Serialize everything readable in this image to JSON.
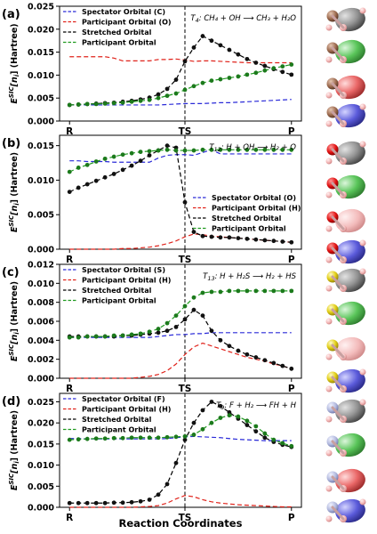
{
  "figure": {
    "x_axis_title": "Reaction Coordinates",
    "ticks": [
      "R",
      "TS",
      "P"
    ],
    "ylabel_main": "E",
    "ylabel_sup": "SIC",
    "ylabel_tail": "[n",
    "ylabel_sub": "i",
    "ylabel_end": "] (Hartree)",
    "colors": {
      "spectator": "#2a2ad8",
      "participant_h": "#e0231b",
      "stretched": "#000000",
      "participant": "#1f9a1f",
      "dot_black": "#111111",
      "dot_green": "#1c7a1c"
    }
  },
  "chart_data": [
    {
      "type": "line",
      "panel_label": "(a)",
      "reaction_label": "T",
      "reaction_label_sub": "4",
      "reaction_label_rest": ": CH₄ + OH ⟶ CH₃ + H₂O",
      "x": [
        0,
        1,
        2,
        3,
        4,
        5,
        6,
        7,
        8,
        9,
        10,
        11,
        12,
        13,
        14,
        15,
        16,
        17,
        18,
        19,
        20,
        21,
        22,
        23,
        24,
        25
      ],
      "ylim": [
        0,
        0.025
      ],
      "yticks": [
        "0.000",
        "0.005",
        "0.010",
        "0.015",
        "0.020",
        "0.025"
      ],
      "series": [
        {
          "name": "Spectator Orbital (C)",
          "style": "dashed",
          "color_key": "spectator",
          "values": [
            0.0035,
            0.0035,
            0.0035,
            0.0035,
            0.0035,
            0.0035,
            0.0035,
            0.0035,
            0.0035,
            0.0035,
            0.0035,
            0.0036,
            0.0037,
            0.0038,
            0.0038,
            0.0038,
            0.0039,
            0.004,
            0.004,
            0.0041,
            0.0042,
            0.0043,
            0.0044,
            0.0045,
            0.0046,
            0.0047
          ]
        },
        {
          "name": "Participant Orbital (O)",
          "style": "dashed",
          "color_key": "participant_h",
          "values": [
            0.014,
            0.014,
            0.014,
            0.014,
            0.014,
            0.0137,
            0.0131,
            0.0131,
            0.0131,
            0.0131,
            0.0134,
            0.0134,
            0.0135,
            0.0133,
            0.013,
            0.0131,
            0.0131,
            0.013,
            0.0129,
            0.0128,
            0.0127,
            0.0127,
            0.0127,
            0.0127,
            0.0127,
            0.0127
          ]
        },
        {
          "name": "Stretched Orbital",
          "style": "dashed",
          "color_key": "stretched",
          "dots": true,
          "values": [
            0.0035,
            0.0036,
            0.0037,
            0.0038,
            0.0039,
            0.004,
            0.0042,
            0.0044,
            0.0047,
            0.0051,
            0.0058,
            0.007,
            0.009,
            0.013,
            0.016,
            0.0185,
            0.0175,
            0.0165,
            0.0155,
            0.0145,
            0.0135,
            0.0127,
            0.012,
            0.0113,
            0.0107,
            0.0101
          ]
        },
        {
          "name": "Participant Orbital",
          "style": "dashed",
          "color_key": "participant",
          "dots": true,
          "dot_color_key": "dot_green",
          "values": [
            0.0035,
            0.0036,
            0.0037,
            0.0037,
            0.0038,
            0.0039,
            0.004,
            0.0042,
            0.0044,
            0.0046,
            0.005,
            0.0055,
            0.006,
            0.0068,
            0.0076,
            0.0083,
            0.0088,
            0.0091,
            0.0094,
            0.0097,
            0.0101,
            0.0105,
            0.011,
            0.0115,
            0.0119,
            0.0123
          ]
        }
      ]
    },
    {
      "type": "line",
      "panel_label": "(b)",
      "reaction_label": "T",
      "reaction_label_sub": "12",
      "reaction_label_rest": ": H + OH ⟶ H₂ + O",
      "x": [
        0,
        1,
        2,
        3,
        4,
        5,
        6,
        7,
        8,
        9,
        10,
        11,
        12,
        13,
        14,
        15,
        16,
        17,
        18,
        19,
        20,
        21,
        22,
        23,
        24,
        25
      ],
      "ylim": [
        0,
        0.0165
      ],
      "yticks": [
        "0.000",
        "0.005",
        "0.010",
        "0.015"
      ],
      "series": [
        {
          "name": "Spectator Orbital (O)",
          "style": "dashed",
          "color_key": "spectator",
          "values": [
            0.0128,
            0.0128,
            0.0127,
            0.0127,
            0.0127,
            0.0126,
            0.0126,
            0.0126,
            0.0126,
            0.0126,
            0.0132,
            0.0136,
            0.0137,
            0.0137,
            0.0136,
            0.014,
            0.0144,
            0.0138,
            0.0138,
            0.0138,
            0.0138,
            0.0138,
            0.0138,
            0.0138,
            0.0138,
            0.0138
          ]
        },
        {
          "name": "Participant Orbital (H)",
          "style": "dashed",
          "color_key": "participant_h",
          "values": [
            0.0,
            0.0,
            0.0,
            0.0,
            0.0,
            0.0,
            0.0001,
            0.0001,
            0.0002,
            0.0003,
            0.0005,
            0.0008,
            0.0012,
            0.0018,
            0.0022,
            0.0021,
            0.0019,
            0.0018,
            0.0017,
            0.0016,
            0.0015,
            0.0014,
            0.0013,
            0.0012,
            0.0011,
            0.001
          ]
        },
        {
          "name": "Stretched Orbital",
          "style": "dashed",
          "color_key": "stretched",
          "dots": true,
          "values": [
            0.0083,
            0.0089,
            0.0094,
            0.0099,
            0.0104,
            0.0109,
            0.0115,
            0.0121,
            0.0128,
            0.0136,
            0.0143,
            0.015,
            0.0147,
            0.0068,
            0.0025,
            0.0019,
            0.0018,
            0.0017,
            0.0017,
            0.0016,
            0.0015,
            0.0014,
            0.0013,
            0.0012,
            0.0011,
            0.001
          ]
        },
        {
          "name": "Participant Orbital",
          "style": "dashed",
          "color_key": "participant",
          "dots": true,
          "dot_color_key": "dot_green",
          "values": [
            0.0112,
            0.0118,
            0.0122,
            0.0127,
            0.0131,
            0.0134,
            0.0137,
            0.0139,
            0.0141,
            0.0142,
            0.0143,
            0.0144,
            0.0143,
            0.0143,
            0.0143,
            0.0144,
            0.0144,
            0.0144,
            0.0144,
            0.0144,
            0.0144,
            0.0144,
            0.0144,
            0.0144,
            0.0144,
            0.0144
          ]
        }
      ]
    },
    {
      "type": "line",
      "panel_label": "(c)",
      "reaction_label": "T",
      "reaction_label_sub": "13",
      "reaction_label_rest": ": H + H₂S ⟶ H₂ + HS",
      "x": [
        0,
        1,
        2,
        3,
        4,
        5,
        6,
        7,
        8,
        9,
        10,
        11,
        12,
        13,
        14,
        15,
        16,
        17,
        18,
        19,
        20,
        21,
        22,
        23,
        24,
        25
      ],
      "ylim": [
        0,
        0.012
      ],
      "yticks": [
        "0.000",
        "0.002",
        "0.004",
        "0.006",
        "0.008",
        "0.010",
        "0.012"
      ],
      "series": [
        {
          "name": "Spectator Orbital (S)",
          "style": "dashed",
          "color_key": "spectator",
          "values": [
            0.0043,
            0.0043,
            0.0043,
            0.0043,
            0.0043,
            0.0043,
            0.0043,
            0.0043,
            0.0043,
            0.0043,
            0.0044,
            0.0045,
            0.0046,
            0.0046,
            0.0047,
            0.0047,
            0.0048,
            0.0048,
            0.0048,
            0.0048,
            0.0048,
            0.0048,
            0.0048,
            0.0048,
            0.0048,
            0.0048
          ]
        },
        {
          "name": "Participant Orbital (H)",
          "style": "dashed",
          "color_key": "participant_h",
          "values": [
            0.0,
            0.0,
            0.0,
            0.0,
            0.0,
            0.0,
            0.0,
            0.0,
            0.0001,
            0.0002,
            0.0004,
            0.0008,
            0.0015,
            0.0025,
            0.0033,
            0.0037,
            0.0034,
            0.0031,
            0.0028,
            0.0025,
            0.0022,
            0.002,
            0.0018,
            0.0015,
            0.0013,
            0.001
          ]
        },
        {
          "name": "Stretched Orbital",
          "style": "dashed",
          "color_key": "stretched",
          "dots": true,
          "values": [
            0.0044,
            0.0044,
            0.0044,
            0.0044,
            0.0044,
            0.0044,
            0.0045,
            0.0045,
            0.0046,
            0.0047,
            0.0048,
            0.005,
            0.0054,
            0.0062,
            0.0072,
            0.0066,
            0.005,
            0.004,
            0.0034,
            0.0029,
            0.0025,
            0.0022,
            0.0019,
            0.0016,
            0.0013,
            0.001
          ]
        },
        {
          "name": "Participant Orbital",
          "style": "dashed",
          "color_key": "participant",
          "dots": true,
          "dot_color_key": "dot_green",
          "values": [
            0.0043,
            0.0043,
            0.0044,
            0.0044,
            0.0044,
            0.0045,
            0.0045,
            0.0046,
            0.0047,
            0.0049,
            0.0052,
            0.0058,
            0.0066,
            0.0076,
            0.0085,
            0.009,
            0.0091,
            0.0091,
            0.0092,
            0.0092,
            0.0092,
            0.0092,
            0.0092,
            0.0092,
            0.0092,
            0.0092
          ]
        }
      ]
    },
    {
      "type": "line",
      "panel_label": "(d)",
      "reaction_label": "T",
      "reaction_label_sub": "9",
      "reaction_label_rest": ": F + H₂ ⟶ FH + H",
      "x": [
        0,
        1,
        2,
        3,
        4,
        5,
        6,
        7,
        8,
        9,
        10,
        11,
        12,
        13,
        14,
        15,
        16,
        17,
        18,
        19,
        20,
        21,
        22,
        23,
        24,
        25
      ],
      "ylim": [
        0,
        0.027
      ],
      "yticks": [
        "0.000",
        "0.005",
        "0.010",
        "0.015",
        "0.020",
        "0.025"
      ],
      "series": [
        {
          "name": "Spectator Orbital (F)",
          "style": "dashed",
          "color_key": "spectator",
          "values": [
            0.0163,
            0.0163,
            0.0162,
            0.0162,
            0.0162,
            0.0162,
            0.0162,
            0.0162,
            0.0162,
            0.0162,
            0.0162,
            0.0163,
            0.0165,
            0.0167,
            0.0168,
            0.0167,
            0.0166,
            0.0165,
            0.0163,
            0.0161,
            0.016,
            0.0159,
            0.0158,
            0.0158,
            0.0158,
            0.0158
          ]
        },
        {
          "name": "Participant Orbital (H)",
          "style": "dashed",
          "color_key": "participant_h",
          "values": [
            0.0,
            0.0,
            0.0,
            0.0,
            0.0,
            0.0,
            0.0,
            0.0,
            0.0001,
            0.0002,
            0.0004,
            0.001,
            0.002,
            0.0028,
            0.0025,
            0.0018,
            0.0013,
            0.001,
            0.0008,
            0.0006,
            0.0005,
            0.0004,
            0.0003,
            0.0002,
            0.0001,
            0.0001
          ]
        },
        {
          "name": "Stretched Orbital",
          "style": "dashed",
          "color_key": "stretched",
          "dots": true,
          "values": [
            0.001,
            0.001,
            0.001,
            0.001,
            0.001,
            0.0011,
            0.0011,
            0.0012,
            0.0014,
            0.0018,
            0.003,
            0.0055,
            0.0105,
            0.016,
            0.02,
            0.023,
            0.025,
            0.024,
            0.0225,
            0.021,
            0.0195,
            0.018,
            0.0165,
            0.0155,
            0.0148,
            0.0143
          ]
        },
        {
          "name": "Participant Orbital",
          "style": "dashed",
          "color_key": "participant",
          "dots": true,
          "dot_color_key": "dot_green",
          "values": [
            0.016,
            0.0161,
            0.0162,
            0.0163,
            0.0163,
            0.0164,
            0.0164,
            0.0165,
            0.0165,
            0.0165,
            0.0165,
            0.0166,
            0.0167,
            0.0168,
            0.0172,
            0.0185,
            0.02,
            0.0212,
            0.0218,
            0.0215,
            0.0205,
            0.0192,
            0.0175,
            0.016,
            0.0152,
            0.0145
          ]
        }
      ]
    }
  ]
}
